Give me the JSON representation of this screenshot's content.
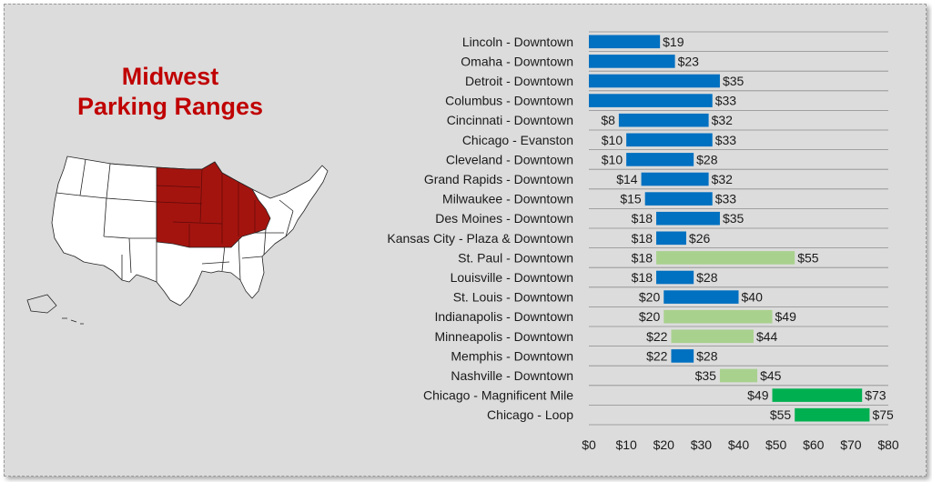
{
  "map_title": [
    "Midwest",
    "Parking Ranges"
  ],
  "colors": {
    "title": "#c00000",
    "midwest_states": "#a4140f",
    "other_states": "#ffffff",
    "bar_blue": "#0070c0",
    "bar_light_green": "#a9d18e",
    "bar_green": "#00b050",
    "gridline": "#8c8c8c",
    "background": "#dcdcdc"
  },
  "chart_data": {
    "type": "bar",
    "orientation": "horizontal",
    "subtype": "floating-range",
    "categories": [
      "Lincoln - Downtown",
      "Omaha - Downtown",
      "Detroit - Downtown",
      "Columbus - Downtown",
      "Cincinnati - Downtown",
      "Chicago - Evanston",
      "Cleveland - Downtown",
      "Grand Rapids - Downtown",
      "Milwaukee - Downtown",
      "Des Moines - Downtown",
      "Kansas City - Plaza & Downtown",
      "St. Paul - Downtown",
      "Louisville - Downtown",
      "St. Louis - Downtown",
      "Indianapolis - Downtown",
      "Minneapolis - Downtown",
      "Memphis - Downtown",
      "Nashville - Downtown",
      "Chicago - Magnificent Mile",
      "Chicago - Loop"
    ],
    "low": [
      0,
      0,
      0,
      0,
      8,
      10,
      10,
      14,
      15,
      18,
      18,
      18,
      18,
      20,
      20,
      22,
      22,
      35,
      49,
      55
    ],
    "high": [
      19,
      23,
      35,
      33,
      32,
      33,
      28,
      32,
      33,
      35,
      26,
      55,
      28,
      40,
      49,
      44,
      28,
      45,
      73,
      75
    ],
    "low_labels": [
      "",
      "",
      "",
      "",
      "$8",
      "$10",
      "$10",
      "$14",
      "$15",
      "$18",
      "$18",
      "$18",
      "$18",
      "$20",
      "$20",
      "$22",
      "$22",
      "$35",
      "$49",
      "$55"
    ],
    "high_labels": [
      "$19",
      "$23",
      "$35",
      "$33",
      "$32",
      "$33",
      "$28",
      "$32",
      "$33",
      "$35",
      "$26",
      "$55",
      "$28",
      "$40",
      "$49",
      "$44",
      "$28",
      "$45",
      "$73",
      "$75"
    ],
    "bar_colors": [
      "#0070c0",
      "#0070c0",
      "#0070c0",
      "#0070c0",
      "#0070c0",
      "#0070c0",
      "#0070c0",
      "#0070c0",
      "#0070c0",
      "#0070c0",
      "#0070c0",
      "#a9d18e",
      "#0070c0",
      "#0070c0",
      "#a9d18e",
      "#a9d18e",
      "#0070c0",
      "#a9d18e",
      "#00b050",
      "#00b050"
    ],
    "x_ticks": [
      0,
      10,
      20,
      30,
      40,
      50,
      60,
      70,
      80
    ],
    "x_tick_labels": [
      "$0",
      "$10",
      "$20",
      "$30",
      "$40",
      "$50",
      "$60",
      "$70",
      "$80"
    ],
    "xlim": [
      0,
      80
    ],
    "grid": "horizontal row separators",
    "legend": "none"
  }
}
